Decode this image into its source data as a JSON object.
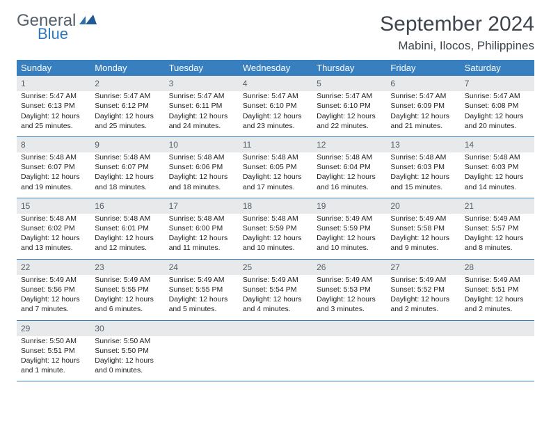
{
  "logo": {
    "general": "General",
    "blue": "Blue"
  },
  "title": "September 2024",
  "location": "Mabini, Ilocos, Philippines",
  "colors": {
    "header_bg": "#377fbf",
    "header_text": "#ffffff",
    "daynum_bg": "#e7e9ea",
    "text": "#222222",
    "logo_gray": "#555f6a",
    "logo_blue": "#2f77bd"
  },
  "weekdays": [
    "Sunday",
    "Monday",
    "Tuesday",
    "Wednesday",
    "Thursday",
    "Friday",
    "Saturday"
  ],
  "weeks": [
    {
      "nums": [
        "1",
        "2",
        "3",
        "4",
        "5",
        "6",
        "7"
      ],
      "cells": [
        {
          "sunrise": "Sunrise: 5:47 AM",
          "sunset": "Sunset: 6:13 PM",
          "day1": "Daylight: 12 hours",
          "day2": "and 25 minutes."
        },
        {
          "sunrise": "Sunrise: 5:47 AM",
          "sunset": "Sunset: 6:12 PM",
          "day1": "Daylight: 12 hours",
          "day2": "and 25 minutes."
        },
        {
          "sunrise": "Sunrise: 5:47 AM",
          "sunset": "Sunset: 6:11 PM",
          "day1": "Daylight: 12 hours",
          "day2": "and 24 minutes."
        },
        {
          "sunrise": "Sunrise: 5:47 AM",
          "sunset": "Sunset: 6:10 PM",
          "day1": "Daylight: 12 hours",
          "day2": "and 23 minutes."
        },
        {
          "sunrise": "Sunrise: 5:47 AM",
          "sunset": "Sunset: 6:10 PM",
          "day1": "Daylight: 12 hours",
          "day2": "and 22 minutes."
        },
        {
          "sunrise": "Sunrise: 5:47 AM",
          "sunset": "Sunset: 6:09 PM",
          "day1": "Daylight: 12 hours",
          "day2": "and 21 minutes."
        },
        {
          "sunrise": "Sunrise: 5:47 AM",
          "sunset": "Sunset: 6:08 PM",
          "day1": "Daylight: 12 hours",
          "day2": "and 20 minutes."
        }
      ]
    },
    {
      "nums": [
        "8",
        "9",
        "10",
        "11",
        "12",
        "13",
        "14"
      ],
      "cells": [
        {
          "sunrise": "Sunrise: 5:48 AM",
          "sunset": "Sunset: 6:07 PM",
          "day1": "Daylight: 12 hours",
          "day2": "and 19 minutes."
        },
        {
          "sunrise": "Sunrise: 5:48 AM",
          "sunset": "Sunset: 6:07 PM",
          "day1": "Daylight: 12 hours",
          "day2": "and 18 minutes."
        },
        {
          "sunrise": "Sunrise: 5:48 AM",
          "sunset": "Sunset: 6:06 PM",
          "day1": "Daylight: 12 hours",
          "day2": "and 18 minutes."
        },
        {
          "sunrise": "Sunrise: 5:48 AM",
          "sunset": "Sunset: 6:05 PM",
          "day1": "Daylight: 12 hours",
          "day2": "and 17 minutes."
        },
        {
          "sunrise": "Sunrise: 5:48 AM",
          "sunset": "Sunset: 6:04 PM",
          "day1": "Daylight: 12 hours",
          "day2": "and 16 minutes."
        },
        {
          "sunrise": "Sunrise: 5:48 AM",
          "sunset": "Sunset: 6:03 PM",
          "day1": "Daylight: 12 hours",
          "day2": "and 15 minutes."
        },
        {
          "sunrise": "Sunrise: 5:48 AM",
          "sunset": "Sunset: 6:03 PM",
          "day1": "Daylight: 12 hours",
          "day2": "and 14 minutes."
        }
      ]
    },
    {
      "nums": [
        "15",
        "16",
        "17",
        "18",
        "19",
        "20",
        "21"
      ],
      "cells": [
        {
          "sunrise": "Sunrise: 5:48 AM",
          "sunset": "Sunset: 6:02 PM",
          "day1": "Daylight: 12 hours",
          "day2": "and 13 minutes."
        },
        {
          "sunrise": "Sunrise: 5:48 AM",
          "sunset": "Sunset: 6:01 PM",
          "day1": "Daylight: 12 hours",
          "day2": "and 12 minutes."
        },
        {
          "sunrise": "Sunrise: 5:48 AM",
          "sunset": "Sunset: 6:00 PM",
          "day1": "Daylight: 12 hours",
          "day2": "and 11 minutes."
        },
        {
          "sunrise": "Sunrise: 5:48 AM",
          "sunset": "Sunset: 5:59 PM",
          "day1": "Daylight: 12 hours",
          "day2": "and 10 minutes."
        },
        {
          "sunrise": "Sunrise: 5:49 AM",
          "sunset": "Sunset: 5:59 PM",
          "day1": "Daylight: 12 hours",
          "day2": "and 10 minutes."
        },
        {
          "sunrise": "Sunrise: 5:49 AM",
          "sunset": "Sunset: 5:58 PM",
          "day1": "Daylight: 12 hours",
          "day2": "and 9 minutes."
        },
        {
          "sunrise": "Sunrise: 5:49 AM",
          "sunset": "Sunset: 5:57 PM",
          "day1": "Daylight: 12 hours",
          "day2": "and 8 minutes."
        }
      ]
    },
    {
      "nums": [
        "22",
        "23",
        "24",
        "25",
        "26",
        "27",
        "28"
      ],
      "cells": [
        {
          "sunrise": "Sunrise: 5:49 AM",
          "sunset": "Sunset: 5:56 PM",
          "day1": "Daylight: 12 hours",
          "day2": "and 7 minutes."
        },
        {
          "sunrise": "Sunrise: 5:49 AM",
          "sunset": "Sunset: 5:55 PM",
          "day1": "Daylight: 12 hours",
          "day2": "and 6 minutes."
        },
        {
          "sunrise": "Sunrise: 5:49 AM",
          "sunset": "Sunset: 5:55 PM",
          "day1": "Daylight: 12 hours",
          "day2": "and 5 minutes."
        },
        {
          "sunrise": "Sunrise: 5:49 AM",
          "sunset": "Sunset: 5:54 PM",
          "day1": "Daylight: 12 hours",
          "day2": "and 4 minutes."
        },
        {
          "sunrise": "Sunrise: 5:49 AM",
          "sunset": "Sunset: 5:53 PM",
          "day1": "Daylight: 12 hours",
          "day2": "and 3 minutes."
        },
        {
          "sunrise": "Sunrise: 5:49 AM",
          "sunset": "Sunset: 5:52 PM",
          "day1": "Daylight: 12 hours",
          "day2": "and 2 minutes."
        },
        {
          "sunrise": "Sunrise: 5:49 AM",
          "sunset": "Sunset: 5:51 PM",
          "day1": "Daylight: 12 hours",
          "day2": "and 2 minutes."
        }
      ]
    },
    {
      "nums": [
        "29",
        "30",
        "",
        "",
        "",
        "",
        ""
      ],
      "cells": [
        {
          "sunrise": "Sunrise: 5:50 AM",
          "sunset": "Sunset: 5:51 PM",
          "day1": "Daylight: 12 hours",
          "day2": "and 1 minute."
        },
        {
          "sunrise": "Sunrise: 5:50 AM",
          "sunset": "Sunset: 5:50 PM",
          "day1": "Daylight: 12 hours",
          "day2": "and 0 minutes."
        },
        null,
        null,
        null,
        null,
        null
      ]
    }
  ]
}
